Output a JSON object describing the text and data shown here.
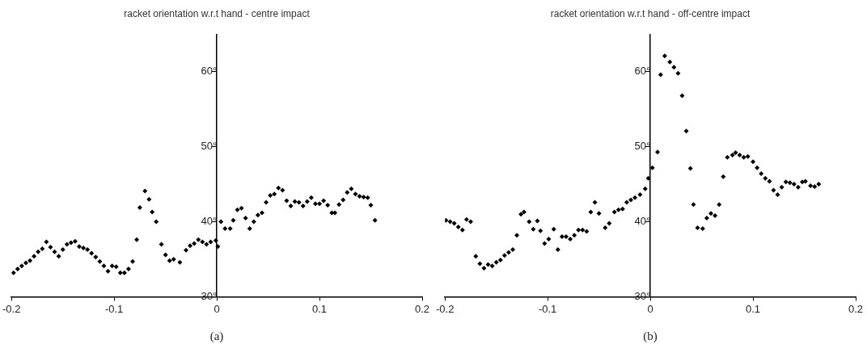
{
  "chart_data": [
    {
      "type": "scatter",
      "title": "racket orientation w.r.t hand - centre impact",
      "annotations": [
        "(a)"
      ],
      "marker": "diamond",
      "grid": false,
      "legend": false,
      "xlim": [
        -0.2,
        0.2
      ],
      "xticks": [
        -0.2,
        -0.1,
        0,
        0.1,
        0.2
      ],
      "ylim": [
        30,
        65
      ],
      "yticks": [
        {
          "value": 30,
          "label": "30°"
        },
        {
          "value": 40,
          "label": "40°"
        },
        {
          "value": 50,
          "label": "50°"
        },
        {
          "value": 60,
          "label": "60°"
        }
      ],
      "series": [
        {
          "color": "#000000",
          "x": [
            -0.198,
            -0.194,
            -0.19,
            -0.186,
            -0.182,
            -0.178,
            -0.174,
            -0.17,
            -0.166,
            -0.162,
            -0.158,
            -0.154,
            -0.15,
            -0.146,
            -0.142,
            -0.138,
            -0.134,
            -0.13,
            -0.126,
            -0.122,
            -0.118,
            -0.114,
            -0.11,
            -0.106,
            -0.102,
            -0.098,
            -0.094,
            -0.09,
            -0.086,
            -0.082,
            -0.078,
            -0.075,
            -0.07,
            -0.066,
            -0.063,
            -0.059,
            -0.054,
            -0.05,
            -0.046,
            -0.042,
            -0.036,
            -0.03,
            -0.026,
            -0.022,
            -0.018,
            -0.014,
            -0.01,
            -0.006,
            -0.001,
            0.001,
            0.004,
            0.008,
            0.013,
            0.016,
            0.02,
            0.024,
            0.028,
            0.032,
            0.036,
            0.04,
            0.044,
            0.048,
            0.052,
            0.056,
            0.06,
            0.064,
            0.068,
            0.072,
            0.076,
            0.08,
            0.084,
            0.088,
            0.092,
            0.096,
            0.1,
            0.104,
            0.108,
            0.112,
            0.115,
            0.119,
            0.123,
            0.127,
            0.131,
            0.135,
            0.139,
            0.143,
            0.147,
            0.15,
            0.154
          ],
          "values": [
            33.2,
            33.7,
            34.1,
            34.5,
            34.8,
            35.4,
            36,
            36.4,
            37.3,
            36.6,
            36,
            35.4,
            36.3,
            37,
            37.2,
            37.4,
            36.7,
            36.5,
            36.3,
            35.8,
            35.3,
            34.7,
            34.1,
            33.4,
            34.1,
            34,
            33.2,
            33.2,
            33.7,
            34.7,
            37.6,
            41.9,
            44.1,
            43,
            41.3,
            40,
            37,
            35.6,
            34.8,
            35,
            34.6,
            36.2,
            36.8,
            37.1,
            37.6,
            37.3,
            37,
            37.3,
            37.5,
            36.7,
            40,
            39.1,
            39.1,
            40.2,
            41.6,
            41.8,
            40.5,
            39.1,
            40,
            40.9,
            41.2,
            42.6,
            43.5,
            43.7,
            44.5,
            44.2,
            42.8,
            42.1,
            42.7,
            42.6,
            42.1,
            42.7,
            43.2,
            42.4,
            42.4,
            42.8,
            42.2,
            41.2,
            41.2,
            42.3,
            42.9,
            43.9,
            44.4,
            43.7,
            43.4,
            43.3,
            43.2,
            42.2,
            40.2
          ]
        }
      ]
    },
    {
      "type": "scatter",
      "title": "racket orientation w.r.t hand - off-centre impact",
      "annotations": [
        "(b)"
      ],
      "marker": "diamond",
      "grid": false,
      "legend": false,
      "xlim": [
        -0.2,
        0.2
      ],
      "xticks": [
        -0.2,
        -0.1,
        0,
        0.1,
        0.2
      ],
      "ylim": [
        30,
        65
      ],
      "yticks": [
        {
          "value": 30,
          "label": "30°"
        },
        {
          "value": 40,
          "label": "40°"
        },
        {
          "value": 50,
          "label": "50°"
        },
        {
          "value": 60,
          "label": "60°"
        }
      ],
      "series": [
        {
          "color": "#000000",
          "x": [
            -0.199,
            -0.195,
            -0.191,
            -0.187,
            -0.183,
            -0.179,
            -0.175,
            -0.17,
            -0.166,
            -0.162,
            -0.158,
            -0.154,
            -0.15,
            -0.146,
            -0.142,
            -0.138,
            -0.134,
            -0.13,
            -0.126,
            -0.123,
            -0.118,
            -0.114,
            -0.11,
            -0.107,
            -0.103,
            -0.099,
            -0.094,
            -0.09,
            -0.086,
            -0.082,
            -0.078,
            -0.074,
            -0.07,
            -0.066,
            -0.062,
            -0.058,
            -0.054,
            -0.05,
            -0.044,
            -0.04,
            -0.035,
            -0.031,
            -0.027,
            -0.023,
            -0.019,
            -0.015,
            -0.01,
            -0.005,
            -0.002,
            0.002,
            0.007,
            0.01,
            0.014,
            0.019,
            0.023,
            0.027,
            0.031,
            0.035,
            0.039,
            0.042,
            0.046,
            0.051,
            0.055,
            0.059,
            0.063,
            0.067,
            0.071,
            0.075,
            0.08,
            0.083,
            0.087,
            0.091,
            0.095,
            0.1,
            0.104,
            0.108,
            0.112,
            0.116,
            0.12,
            0.124,
            0.128,
            0.132,
            0.136,
            0.14,
            0.144,
            0.148,
            0.151,
            0.156,
            0.16,
            0.164
          ],
          "values": [
            40.2,
            40,
            39.8,
            39.3,
            38.9,
            40.3,
            40,
            35.4,
            34.4,
            33.8,
            34.3,
            34.1,
            34.6,
            34.9,
            35.5,
            35.9,
            36.3,
            38.2,
            41,
            41.3,
            40,
            39,
            40.1,
            38.8,
            37.1,
            37.7,
            39,
            36.3,
            38,
            38,
            37.7,
            38.2,
            38.9,
            38.9,
            38.7,
            41.3,
            42.6,
            41.1,
            39.2,
            39.8,
            41.3,
            41.6,
            41.7,
            42.6,
            42.9,
            43.2,
            43.6,
            44.4,
            45.8,
            47.2,
            49.3,
            59.6,
            62.1,
            61.3,
            60.6,
            59.8,
            56.8,
            52.1,
            47.1,
            42.3,
            39.2,
            39.1,
            40.5,
            41.1,
            40.8,
            42.3,
            46,
            48.6,
            48.9,
            49.2,
            48.9,
            48.6,
            48.7,
            48,
            47.2,
            46.4,
            45.8,
            45.4,
            44.2,
            43.6,
            44.6,
            45.3,
            45.2,
            45,
            44.6,
            45.3,
            45.4,
            44.8,
            44.7,
            45
          ]
        }
      ]
    }
  ]
}
